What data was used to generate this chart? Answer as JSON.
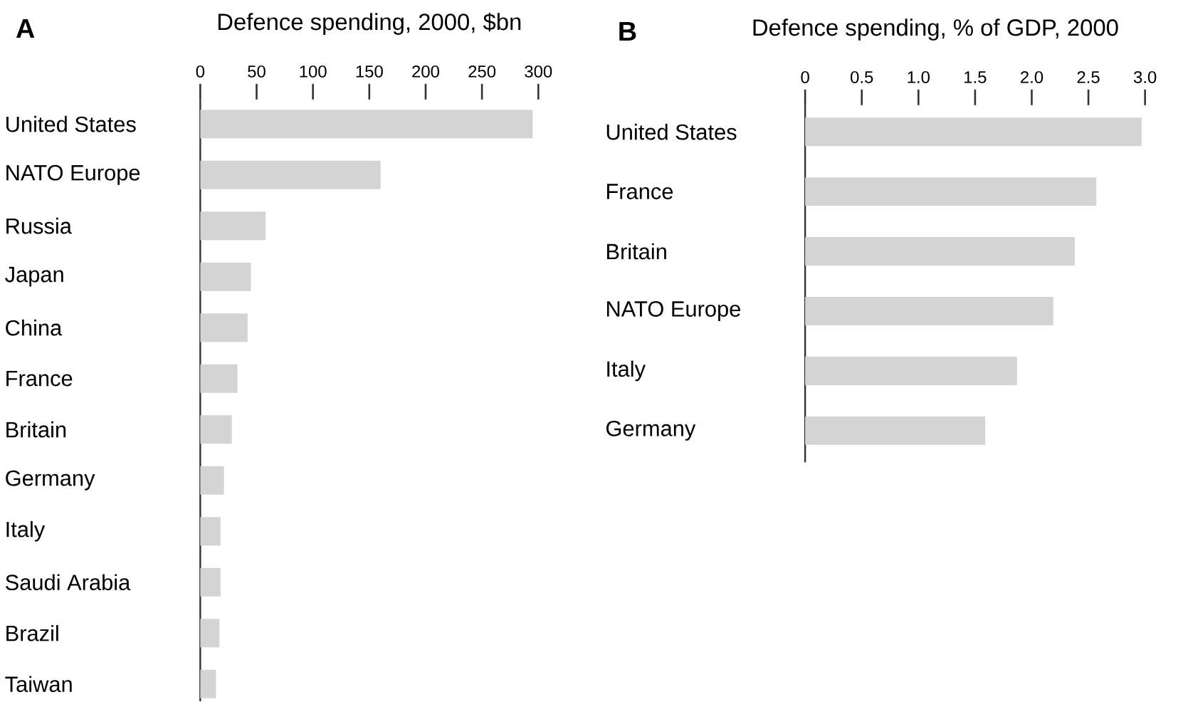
{
  "chart_data": [
    {
      "type": "bar",
      "orientation": "horizontal",
      "xlabel": "Defence spending, 2000, $bn",
      "annotations": [
        "A"
      ],
      "categories": [
        "United States",
        "NATO Europe",
        "Russia",
        "Japan",
        "China",
        "France",
        "Britain",
        "Germany",
        "Italy",
        "Saudi Arabia",
        "Brazil",
        "Taiwan"
      ],
      "values": [
        295,
        160,
        58,
        45,
        42,
        33,
        28,
        21,
        18,
        18,
        17,
        14
      ],
      "color": "#d4d4d4",
      "xlim": [
        0,
        300
      ],
      "xticks": [
        0,
        50,
        100,
        150,
        200,
        250,
        300
      ]
    },
    {
      "type": "bar",
      "orientation": "horizontal",
      "xlabel": "Defence spending, % of GDP, 2000",
      "annotations": [
        "B"
      ],
      "categories": [
        "United States",
        "France",
        "Britain",
        "NATO Europe",
        "Italy",
        "Germany"
      ],
      "values": [
        2.97,
        2.57,
        2.38,
        2.19,
        1.87,
        1.59
      ],
      "color": "#d4d4d4",
      "xlim": [
        0,
        3
      ],
      "xticks": [
        0,
        0.5,
        {
          "value": 1,
          "label": "1.0"
        },
        1.5,
        {
          "value": 2,
          "label": "2.0"
        },
        2.5,
        {
          "value": 3,
          "label": "3.0"
        }
      ]
    }
  ]
}
